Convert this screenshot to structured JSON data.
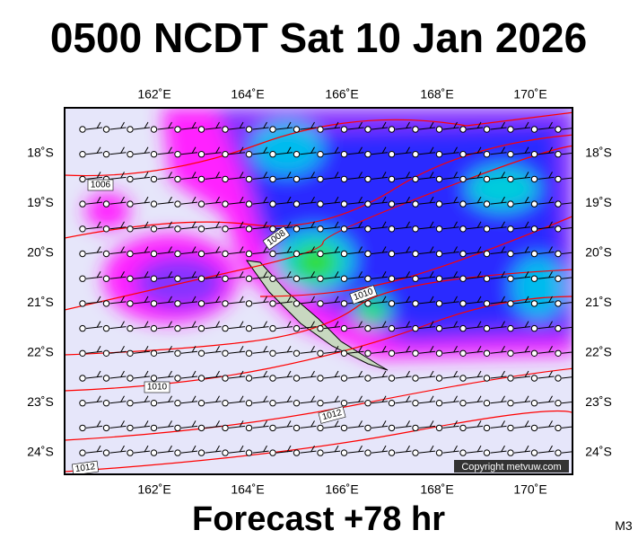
{
  "header": {
    "title": "0500 NCDT Sat 10 Jan 2026"
  },
  "map": {
    "lon_labels": [
      "162˚E",
      "164˚E",
      "166˚E",
      "168˚E",
      "170˚E"
    ],
    "lat_labels": [
      "18˚S",
      "19˚S",
      "20˚S",
      "21˚S",
      "22˚S",
      "23˚S",
      "24˚S"
    ],
    "isobar_labels": [
      "1006",
      "1008",
      "1010",
      "1010",
      "1012",
      "1012"
    ],
    "copyright": "Copyright metvuw.com"
  },
  "footer": {
    "forecast": "Forecast +78 hr",
    "code": "M3"
  }
}
